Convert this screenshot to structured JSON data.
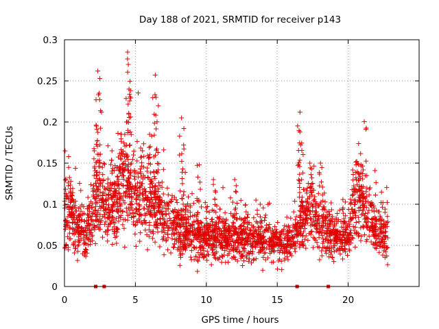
{
  "chart_data": {
    "type": "scatter",
    "title": "Day 188 of 2021, SRMTID for receiver p143",
    "xlabel": "GPS time / hours",
    "ylabel": "SRMTID / TECUs",
    "xlim": [
      0,
      25
    ],
    "ylim": [
      0,
      0.3
    ],
    "xticks": [
      0,
      5,
      10,
      15,
      20
    ],
    "yticks": [
      0,
      0.05,
      0.1,
      0.15,
      0.2,
      0.25,
      0.3
    ],
    "xtick_labels": [
      "0",
      "5",
      "10",
      "15",
      "20"
    ],
    "ytick_labels": [
      "0",
      "0.05",
      "0.1",
      "0.15",
      "0.2",
      "0.25",
      "0.3"
    ],
    "grid": true,
    "marker": "plus",
    "color": "#e00000",
    "x_range_data": [
      0,
      22.8
    ],
    "baseline_profile": [
      [
        0.0,
        0.085
      ],
      [
        0.5,
        0.085
      ],
      [
        1.0,
        0.07
      ],
      [
        1.5,
        0.065
      ],
      [
        2.0,
        0.085
      ],
      [
        2.5,
        0.11
      ],
      [
        3.0,
        0.095
      ],
      [
        3.5,
        0.1
      ],
      [
        4.0,
        0.125
      ],
      [
        4.5,
        0.11
      ],
      [
        5.0,
        0.11
      ],
      [
        5.5,
        0.11
      ],
      [
        6.0,
        0.105
      ],
      [
        6.5,
        0.1
      ],
      [
        7.0,
        0.085
      ],
      [
        7.5,
        0.075
      ],
      [
        8.0,
        0.07
      ],
      [
        8.5,
        0.07
      ],
      [
        9.0,
        0.065
      ],
      [
        9.5,
        0.06
      ],
      [
        10.0,
        0.06
      ],
      [
        11.0,
        0.06
      ],
      [
        12.0,
        0.06
      ],
      [
        13.0,
        0.055
      ],
      [
        14.0,
        0.06
      ],
      [
        15.0,
        0.055
      ],
      [
        16.0,
        0.05
      ],
      [
        16.5,
        0.07
      ],
      [
        17.0,
        0.09
      ],
      [
        17.5,
        0.085
      ],
      [
        18.0,
        0.075
      ],
      [
        18.5,
        0.065
      ],
      [
        19.0,
        0.06
      ],
      [
        19.5,
        0.06
      ],
      [
        20.0,
        0.065
      ],
      [
        20.5,
        0.1
      ],
      [
        21.0,
        0.1
      ],
      [
        21.5,
        0.08
      ],
      [
        22.0,
        0.07
      ],
      [
        22.8,
        0.06
      ]
    ],
    "peaks": [
      {
        "x": 0.45,
        "y": 0.128
      },
      {
        "x": 2.1,
        "y": 0.165
      },
      {
        "x": 2.25,
        "y": 0.195
      },
      {
        "x": 2.35,
        "y": 0.262
      },
      {
        "x": 2.45,
        "y": 0.235
      },
      {
        "x": 3.35,
        "y": 0.165
      },
      {
        "x": 4.0,
        "y": 0.185
      },
      {
        "x": 4.25,
        "y": 0.185
      },
      {
        "x": 4.45,
        "y": 0.285
      },
      {
        "x": 4.5,
        "y": 0.27
      },
      {
        "x": 4.55,
        "y": 0.24
      },
      {
        "x": 5.5,
        "y": 0.165
      },
      {
        "x": 6.0,
        "y": 0.185
      },
      {
        "x": 6.4,
        "y": 0.257
      },
      {
        "x": 6.45,
        "y": 0.23
      },
      {
        "x": 8.25,
        "y": 0.205
      },
      {
        "x": 8.4,
        "y": 0.172
      },
      {
        "x": 9.5,
        "y": 0.148
      },
      {
        "x": 10.5,
        "y": 0.13
      },
      {
        "x": 12.0,
        "y": 0.13
      },
      {
        "x": 16.6,
        "y": 0.212
      },
      {
        "x": 16.6,
        "y": 0.188
      },
      {
        "x": 16.65,
        "y": 0.172
      },
      {
        "x": 17.3,
        "y": 0.15
      },
      {
        "x": 18.05,
        "y": 0.15
      },
      {
        "x": 20.6,
        "y": 0.152
      },
      {
        "x": 20.9,
        "y": 0.148
      }
    ],
    "gap_markers_x": [
      2.2,
      2.8,
      16.4,
      18.6
    ]
  }
}
